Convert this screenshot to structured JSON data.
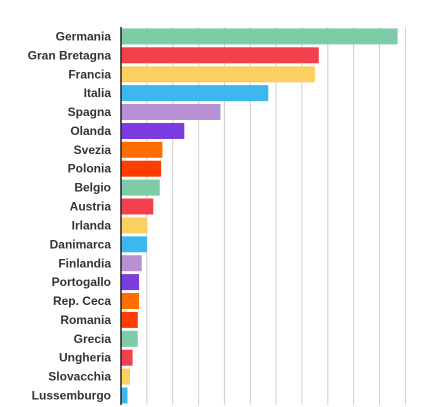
{
  "chart_data": {
    "type": "bar",
    "orientation": "horizontal",
    "categories": [
      "Germania",
      "Gran Bretagna",
      "Francia",
      "Italia",
      "Spagna",
      "Olanda",
      "Svezia",
      "Polonia",
      "Belgio",
      "Austria",
      "Irlanda",
      "Danimarca",
      "Finlandia",
      "Portogallo",
      "Rep. Ceca",
      "Romania",
      "Grecia",
      "Ungheria",
      "Slovacchia",
      "Lussemburgo"
    ],
    "values": [
      107,
      76.5,
      75,
      57,
      38.5,
      24.5,
      16,
      15.5,
      15,
      12.5,
      10,
      10,
      8,
      7,
      7,
      6.5,
      6.5,
      4.5,
      3.5,
      2.5
    ],
    "colors": [
      "#7ecba8",
      "#f2404c",
      "#fcd05e",
      "#3db8ee",
      "#b890d4",
      "#7b3ce0",
      "#ff6d00",
      "#ff3d00",
      "#7ecba8",
      "#f2404c",
      "#fcd05e",
      "#3db8ee",
      "#b890d4",
      "#7b3ce0",
      "#ff6d00",
      "#ff3d00",
      "#7ecba8",
      "#f2404c",
      "#fcd05e",
      "#3db8ee"
    ],
    "title": "",
    "xlabel": "",
    "ylabel": "",
    "xlim": [
      0,
      110
    ],
    "grid": true
  }
}
